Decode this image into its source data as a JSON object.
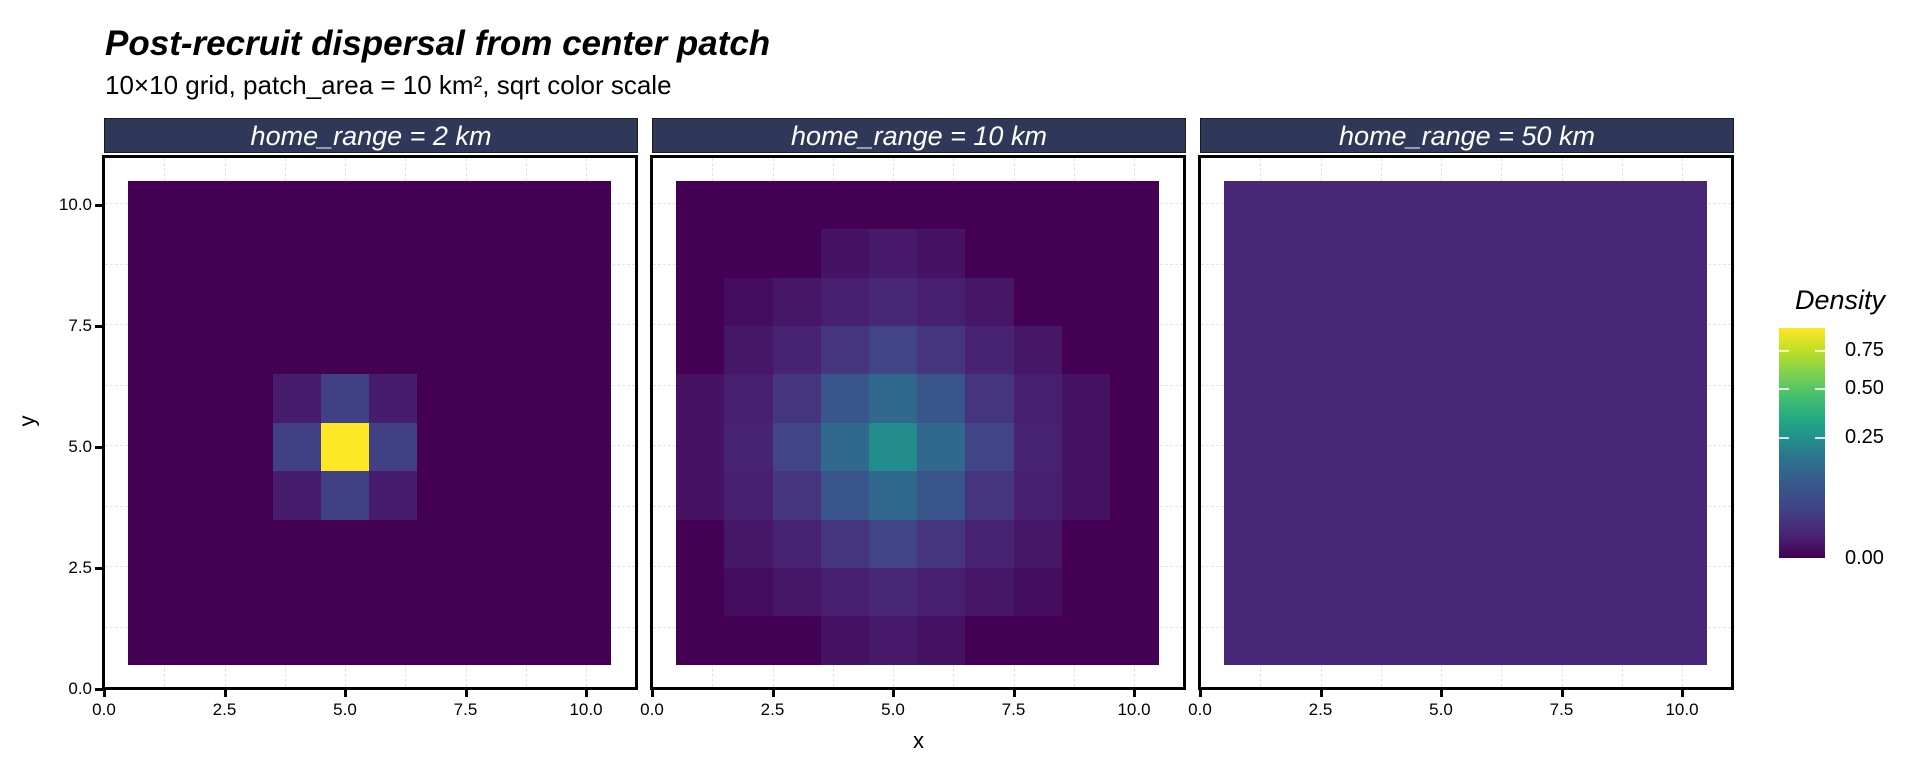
{
  "header": {
    "title": "Post-recruit dispersal from center patch",
    "subtitle": "10×10 grid, patch_area = 10 km², sqrt color scale"
  },
  "axes": {
    "xlabel": "x",
    "ylabel": "y",
    "xticks": [
      "0.0",
      "2.5",
      "5.0",
      "7.5",
      "10.0"
    ],
    "yticks": [
      "0.0",
      "2.5",
      "5.0",
      "7.5",
      "10.0"
    ]
  },
  "panels": [
    {
      "strip": "home_range = 2 km"
    },
    {
      "strip": "home_range = 10 km"
    },
    {
      "strip": "home_range = 50 km"
    }
  ],
  "legend": {
    "title": "Density",
    "ticks": [
      "0.75",
      "0.50",
      "0.25",
      "0.00"
    ],
    "scale": "sqrt",
    "colormap": "viridis"
  },
  "colors": {
    "strip_bg": "#2f3859",
    "base": "#440154",
    "peak": "#fde725"
  },
  "chart_data": {
    "type": "heatmap",
    "title": "Post-recruit dispersal from center patch",
    "subtitle": "10×10 grid, patch_area = 10 km², sqrt color scale",
    "xlabel": "x",
    "ylabel": "y",
    "xlim": [
      0,
      11
    ],
    "ylim": [
      0,
      11
    ],
    "x_ticks": [
      0,
      2.5,
      5,
      7.5,
      10
    ],
    "y_ticks": [
      0,
      2.5,
      5,
      7.5,
      10
    ],
    "legend": {
      "title": "Density",
      "ticks": [
        0,
        0.25,
        0.5,
        0.75
      ],
      "range": [
        0,
        0.86
      ]
    },
    "facets": [
      {
        "label": "home_range = 2 km",
        "note": "Rows listed y=10 (top) to y=1 (bottom); columns x=1..10",
        "density": [
          [
            0,
            0,
            0,
            0,
            0,
            0,
            0,
            0,
            0,
            0
          ],
          [
            0,
            0,
            0,
            0,
            0,
            0,
            0,
            0,
            0,
            0
          ],
          [
            0,
            0,
            0,
            0,
            0,
            0,
            0,
            0,
            0,
            0
          ],
          [
            0,
            0,
            0,
            0,
            0,
            0,
            0,
            0,
            0,
            0
          ],
          [
            0,
            0,
            0,
            0.005,
            0.03,
            0.005,
            0,
            0,
            0,
            0
          ],
          [
            0,
            0,
            0,
            0.03,
            0.86,
            0.03,
            0,
            0,
            0,
            0
          ],
          [
            0,
            0,
            0,
            0.005,
            0.03,
            0.005,
            0,
            0,
            0,
            0
          ],
          [
            0,
            0,
            0,
            0,
            0,
            0,
            0,
            0,
            0,
            0
          ],
          [
            0,
            0,
            0,
            0,
            0,
            0,
            0,
            0,
            0,
            0
          ],
          [
            0,
            0,
            0,
            0,
            0,
            0,
            0,
            0,
            0,
            0
          ]
        ]
      },
      {
        "label": "home_range = 10 km",
        "density": [
          [
            0,
            0,
            0,
            0,
            0,
            0,
            0,
            0,
            0,
            0
          ],
          [
            0,
            0,
            0,
            0.002,
            0.004,
            0.002,
            0,
            0,
            0,
            0
          ],
          [
            0,
            0.001,
            0.003,
            0.006,
            0.01,
            0.006,
            0.003,
            0,
            0,
            0
          ],
          [
            0,
            0.003,
            0.008,
            0.02,
            0.035,
            0.02,
            0.008,
            0.003,
            0,
            0
          ],
          [
            0.002,
            0.006,
            0.02,
            0.06,
            0.1,
            0.06,
            0.02,
            0.006,
            0.002,
            0
          ],
          [
            0.002,
            0.008,
            0.035,
            0.1,
            0.2,
            0.1,
            0.035,
            0.008,
            0.002,
            0
          ],
          [
            0.002,
            0.006,
            0.02,
            0.06,
            0.1,
            0.06,
            0.02,
            0.006,
            0.002,
            0
          ],
          [
            0,
            0.003,
            0.008,
            0.02,
            0.035,
            0.02,
            0.008,
            0.003,
            0,
            0
          ],
          [
            0,
            0.001,
            0.003,
            0.006,
            0.01,
            0.006,
            0.003,
            0.001,
            0,
            0
          ],
          [
            0,
            0,
            0,
            0.002,
            0.004,
            0.002,
            0,
            0,
            0,
            0
          ]
        ]
      },
      {
        "label": "home_range = 50 km",
        "note": "Near-uniform ~0.01 across all cells",
        "density": [
          [
            0.01,
            0.01,
            0.01,
            0.01,
            0.01,
            0.01,
            0.01,
            0.01,
            0.01,
            0.01
          ],
          [
            0.01,
            0.01,
            0.01,
            0.01,
            0.01,
            0.01,
            0.01,
            0.01,
            0.01,
            0.01
          ],
          [
            0.01,
            0.01,
            0.01,
            0.01,
            0.01,
            0.01,
            0.01,
            0.01,
            0.01,
            0.01
          ],
          [
            0.01,
            0.01,
            0.01,
            0.01,
            0.01,
            0.01,
            0.01,
            0.01,
            0.01,
            0.01
          ],
          [
            0.01,
            0.01,
            0.01,
            0.01,
            0.01,
            0.01,
            0.01,
            0.01,
            0.01,
            0.01
          ],
          [
            0.01,
            0.01,
            0.01,
            0.01,
            0.01,
            0.01,
            0.01,
            0.01,
            0.01,
            0.01
          ],
          [
            0.01,
            0.01,
            0.01,
            0.01,
            0.01,
            0.01,
            0.01,
            0.01,
            0.01,
            0.01
          ],
          [
            0.01,
            0.01,
            0.01,
            0.01,
            0.01,
            0.01,
            0.01,
            0.01,
            0.01,
            0.01
          ],
          [
            0.01,
            0.01,
            0.01,
            0.01,
            0.01,
            0.01,
            0.01,
            0.01,
            0.01,
            0.01
          ],
          [
            0.01,
            0.01,
            0.01,
            0.01,
            0.01,
            0.01,
            0.01,
            0.01,
            0.01,
            0.01
          ]
        ]
      }
    ]
  }
}
